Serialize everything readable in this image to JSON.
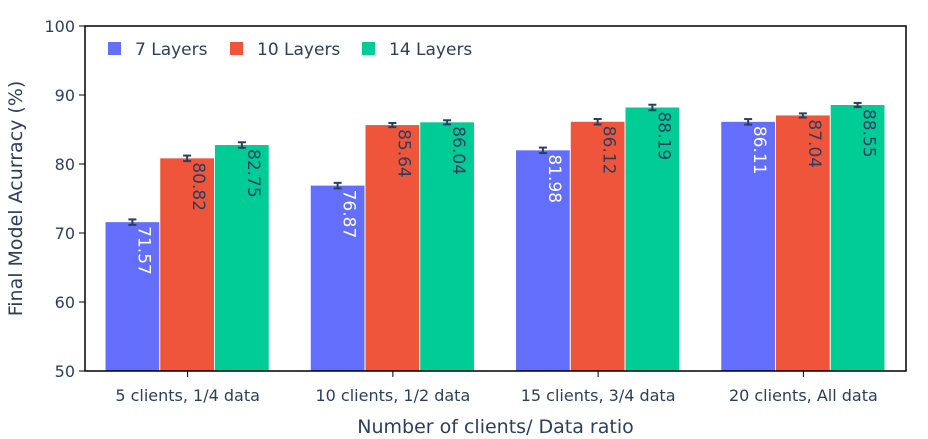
{
  "chart_data": {
    "type": "bar",
    "categories": [
      "5 clients, 1/4 data",
      "10 clients, 1/2 data",
      "15 clients, 3/4 data",
      "20 clients, All data"
    ],
    "series": [
      {
        "name": "7 Layers",
        "color": "#636efa",
        "label_color": "#ffffff",
        "values": [
          71.57,
          76.87,
          81.98,
          86.11
        ],
        "labels": [
          "71.57",
          "76.87",
          "81.98",
          "86.11"
        ],
        "error": [
          0.4,
          0.4,
          0.4,
          0.4
        ]
      },
      {
        "name": "10 Layers",
        "color": "#ef553b",
        "label_color": "#2a3f5f",
        "values": [
          80.82,
          85.64,
          86.12,
          87.04
        ],
        "labels": [
          "80.82",
          "85.64",
          "86.12",
          "87.04"
        ],
        "error": [
          0.4,
          0.3,
          0.4,
          0.3
        ]
      },
      {
        "name": "14 Layers",
        "color": "#00cc96",
        "label_color": "#2a3f5f",
        "values": [
          82.75,
          86.04,
          88.19,
          88.55
        ],
        "labels": [
          "82.75",
          "86.04",
          "88.19",
          "88.55"
        ],
        "error": [
          0.4,
          0.3,
          0.4,
          0.3
        ]
      }
    ],
    "xlabel": "Number of clients/ Data ratio",
    "ylabel": "Final Model Acurracy (%)",
    "ylim": [
      50,
      100
    ],
    "yticks": [
      50,
      60,
      70,
      80,
      90,
      100
    ],
    "grid": false,
    "legend_placement": "top-left"
  }
}
